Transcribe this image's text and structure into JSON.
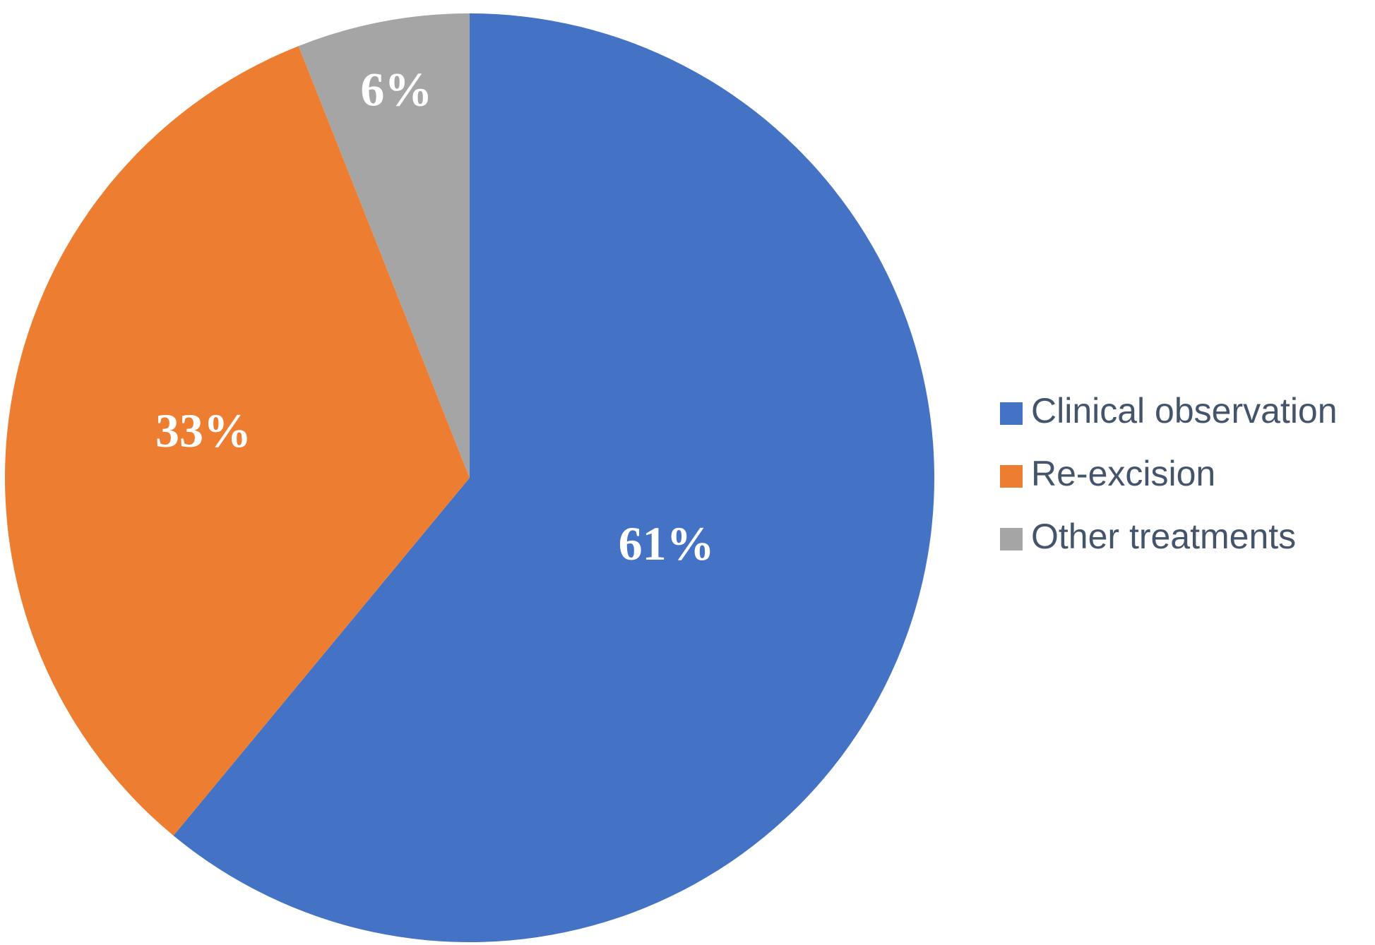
{
  "chart_data": {
    "type": "pie",
    "categories": [
      "Clinical observation",
      "Re-excision",
      "Other treatments"
    ],
    "values": [
      61,
      33,
      6
    ],
    "value_labels": [
      "61%",
      "33%",
      "6%"
    ],
    "colors": [
      "#4472c4",
      "#ed7d31",
      "#a5a5a5"
    ],
    "legend": "right"
  }
}
